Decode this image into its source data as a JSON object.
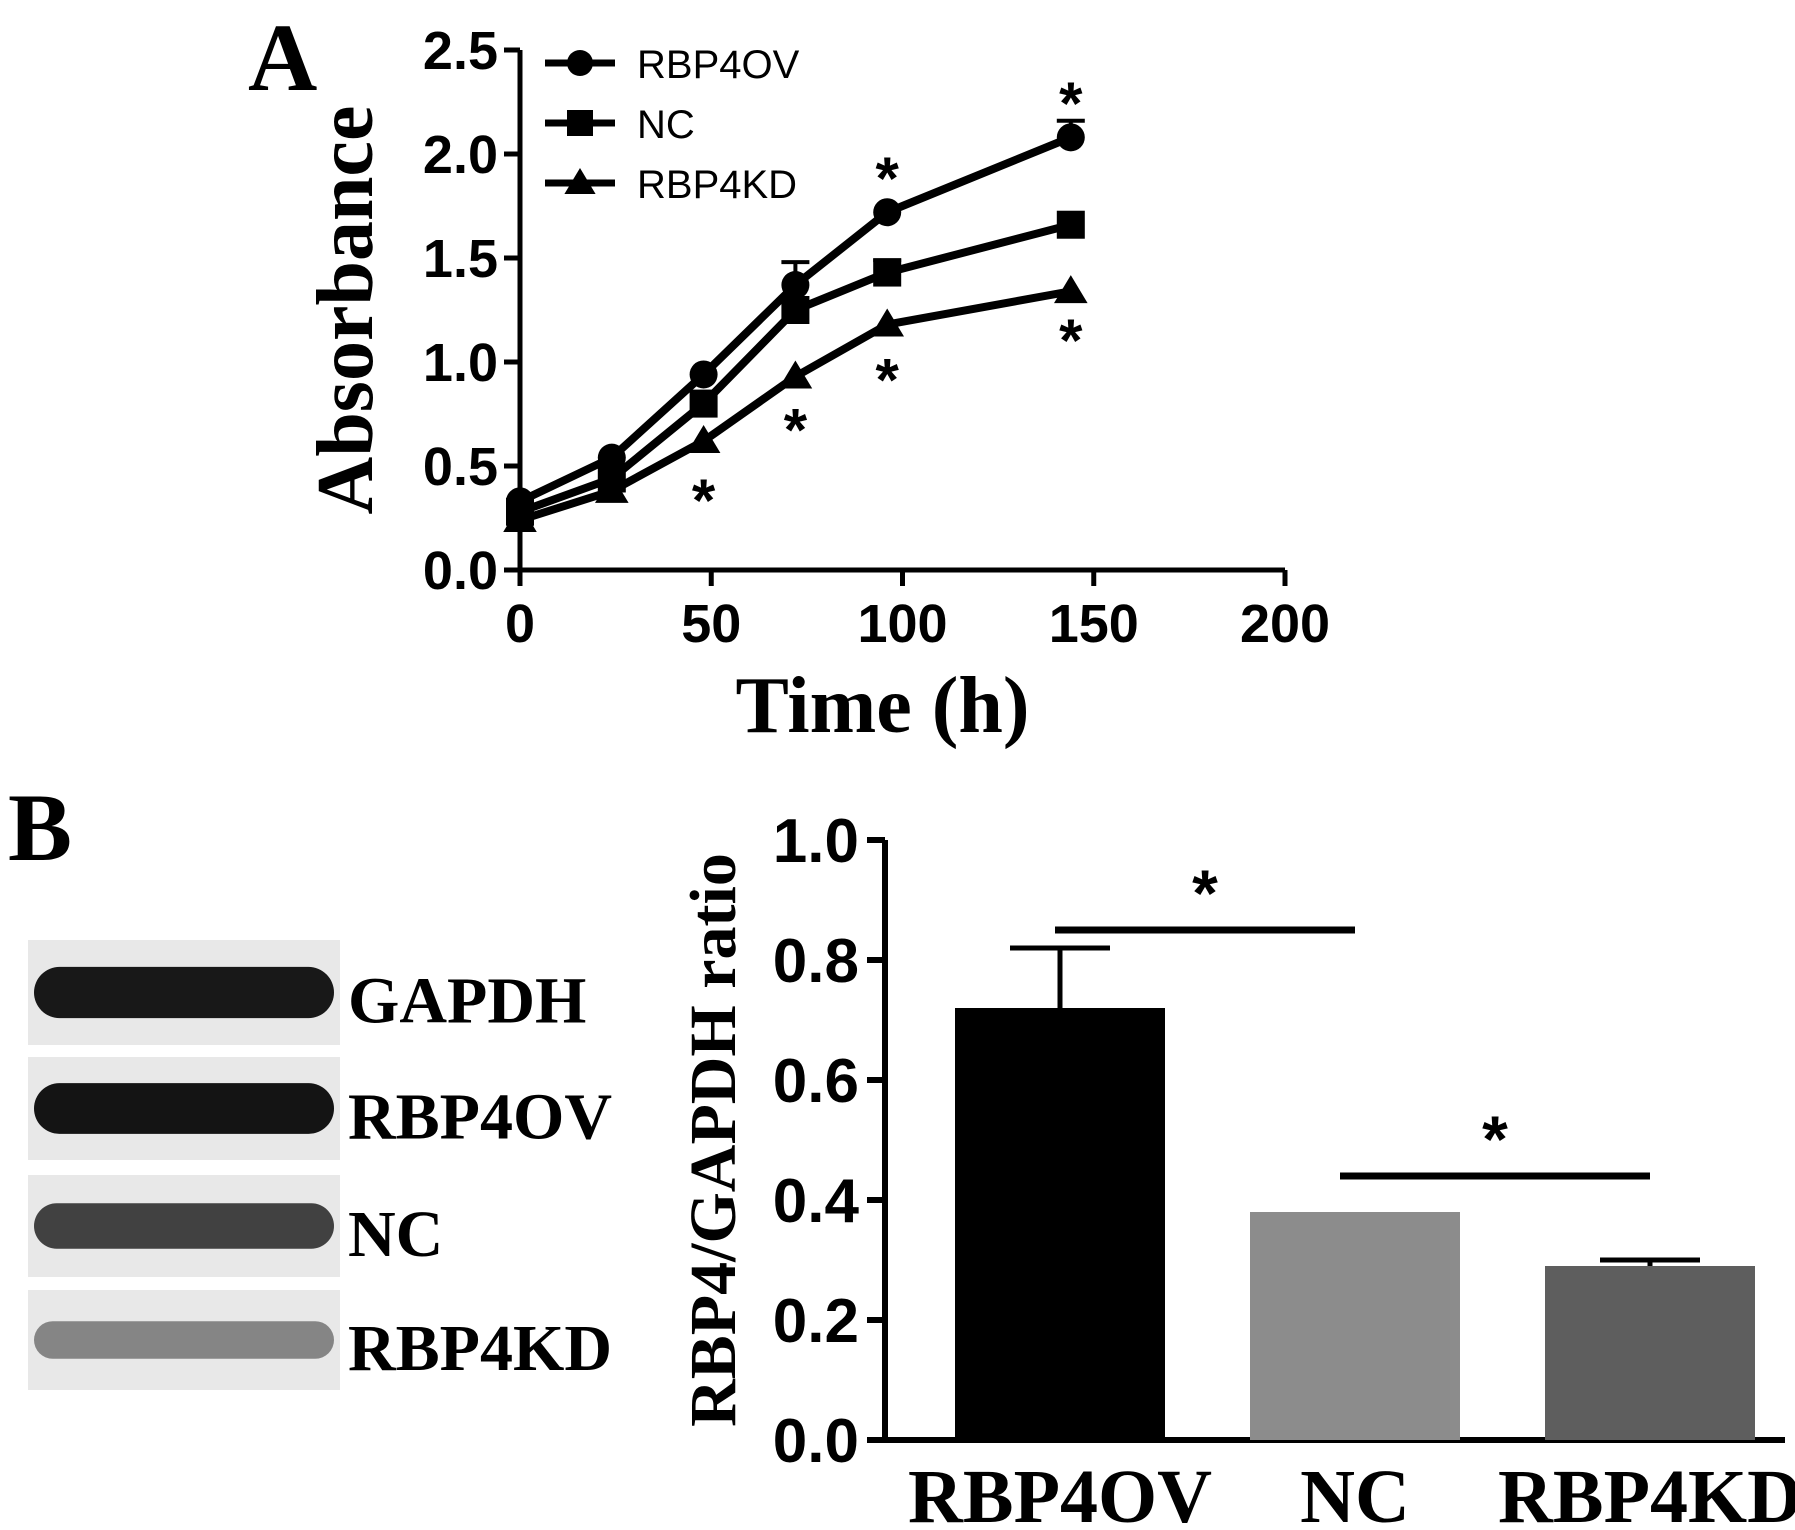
{
  "chart_data": [
    {
      "panel": "A",
      "type": "line",
      "xlabel": "Time (h)",
      "ylabel": "Absorbance",
      "xlim": [
        0,
        200
      ],
      "ylim": [
        0,
        2.5
      ],
      "x_ticks": [
        "0",
        "50",
        "100",
        "150",
        "200"
      ],
      "y_ticks": [
        "0.0",
        "0.5",
        "1.0",
        "1.5",
        "2.0",
        "2.5"
      ],
      "legend_position": "top-left",
      "series": [
        {
          "name": "RBP4OV",
          "marker": "circle",
          "points": [
            {
              "x": 0,
              "y": 0.33,
              "err": 0
            },
            {
              "x": 24,
              "y": 0.54,
              "err": 0
            },
            {
              "x": 48,
              "y": 0.94,
              "err": 0
            },
            {
              "x": 72,
              "y": 1.37,
              "err": 0.11
            },
            {
              "x": 96,
              "y": 1.72,
              "err": 0
            },
            {
              "x": 144,
              "y": 2.08,
              "err": 0.08
            }
          ]
        },
        {
          "name": "NC",
          "marker": "square",
          "points": [
            {
              "x": 0,
              "y": 0.28,
              "err": 0
            },
            {
              "x": 24,
              "y": 0.44,
              "err": 0
            },
            {
              "x": 48,
              "y": 0.8,
              "err": 0
            },
            {
              "x": 72,
              "y": 1.25,
              "err": 0
            },
            {
              "x": 96,
              "y": 1.43,
              "err": 0.06
            },
            {
              "x": 144,
              "y": 1.66,
              "err": 0
            }
          ]
        },
        {
          "name": "RBP4KD",
          "marker": "triangle",
          "points": [
            {
              "x": 0,
              "y": 0.24,
              "err": 0
            },
            {
              "x": 24,
              "y": 0.38,
              "err": 0
            },
            {
              "x": 48,
              "y": 0.62,
              "err": 0
            },
            {
              "x": 72,
              "y": 0.93,
              "err": 0
            },
            {
              "x": 96,
              "y": 1.18,
              "err": 0
            },
            {
              "x": 144,
              "y": 1.34,
              "err": 0
            }
          ]
        }
      ],
      "annotations": [
        {
          "text": "*",
          "x": 144,
          "y": 2.26
        },
        {
          "text": "*",
          "x": 96,
          "y": 1.9
        },
        {
          "text": "*",
          "x": 144,
          "y": 1.12
        },
        {
          "text": "*",
          "x": 96,
          "y": 0.93
        },
        {
          "text": "*",
          "x": 72,
          "y": 0.69
        },
        {
          "text": "*",
          "x": 48,
          "y": 0.35
        }
      ]
    },
    {
      "panel": "B",
      "type": "bar",
      "ylabel": "RBP4/GAPDH ratio",
      "ylim": [
        0,
        1.0
      ],
      "y_ticks": [
        "0.0",
        "0.2",
        "0.4",
        "0.6",
        "0.8",
        "1.0"
      ],
      "categories": [
        "RBP4OV",
        "NC",
        "RBP4KD"
      ],
      "values": [
        0.72,
        0.38,
        0.29
      ],
      "errors": [
        0.1,
        0,
        0.01
      ],
      "colors": [
        "#000000",
        "#8c8c8c",
        "#5e5e5e"
      ],
      "significance": [
        {
          "from": 0,
          "to": 1,
          "level": 0.85,
          "text": "*"
        },
        {
          "from": 1,
          "to": 2,
          "level": 0.44,
          "text": "*"
        }
      ]
    }
  ],
  "panel_labels": [
    "A",
    "B"
  ],
  "blot": {
    "rows": [
      {
        "label": "GAPDH",
        "intensity": 0.95
      },
      {
        "label": "RBP4OV",
        "intensity": 0.97
      },
      {
        "label": "NC",
        "intensity": 0.78
      },
      {
        "label": "RBP4KD",
        "intensity": 0.5
      }
    ]
  }
}
